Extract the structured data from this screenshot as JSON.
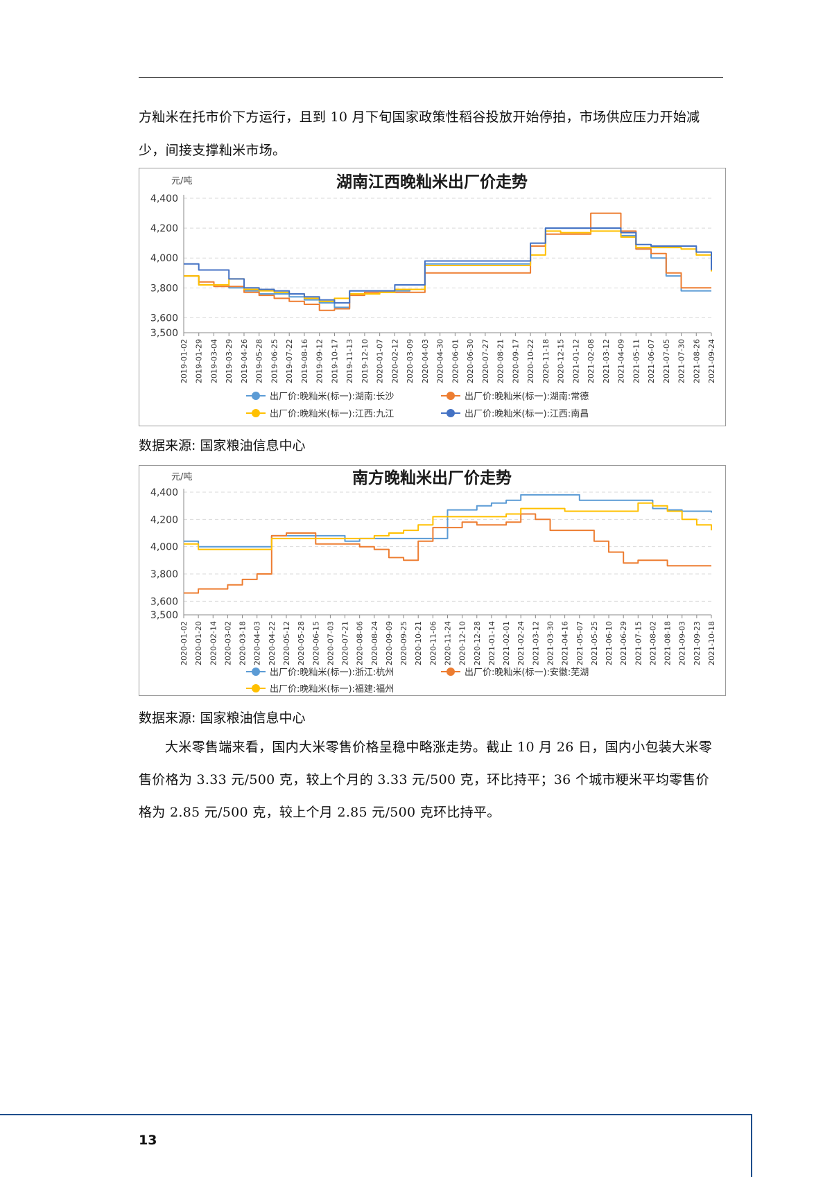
{
  "paragraph_1": "方籼米在托市价下方运行，且到 10 月下旬国家政策性稻谷投放开始停拍，市场供应压力开始减少，间接支撑籼米市场。",
  "caption_1": "数据来源: 国家粮油信息中心",
  "caption_2": "数据来源: 国家粮油信息中心",
  "paragraph_2": "大米零售端来看，国内大米零售价格呈稳中略涨走势。截止 10 月 26 日，国内小包装大米零售价格为 3.33 元/500 克，较上个月的 3.33 元/500 克，环比持平；36 个城市粳米平均零售价格为 2.85 元/500 克，较上个月 2.85 元/500 克环比持平。",
  "page_number": "13",
  "chart_data": [
    {
      "type": "line",
      "title": "湖南江西晚籼米出厂价走势",
      "unit_label": "元/吨",
      "ylabel": "元/吨",
      "ylim": [
        3500,
        4400
      ],
      "yticks": [
        3500,
        3600,
        3800,
        4000,
        4200,
        4400
      ],
      "ytick_labels": [
        "3,500",
        "3,600",
        "3,800",
        "4,000",
        "4,200",
        "4,400"
      ],
      "x_tick_labels": [
        "2019-01-02",
        "2019-01-29",
        "2019-03-04",
        "2019-03-29",
        "2019-04-26",
        "2019-05-28",
        "2019-06-25",
        "2019-07-22",
        "2019-08-16",
        "2019-09-12",
        "2019-10-17",
        "2019-11-13",
        "2019-12-10",
        "2020-01-07",
        "2020-02-12",
        "2020-03-09",
        "2020-04-03",
        "2020-04-30",
        "2020-06-01",
        "2020-06-30",
        "2020-07-27",
        "2020-08-21",
        "2020-09-17",
        "2020-10-22",
        "2020-11-18",
        "2020-12-15",
        "2021-01-12",
        "2021-02-08",
        "2021-03-12",
        "2021-04-09",
        "2021-05-11",
        "2021-06-07",
        "2021-07-05",
        "2021-07-30",
        "2021-08-26",
        "2021-09-24"
      ],
      "grid": true,
      "legend": "bottom",
      "series": [
        {
          "name": "出厂价:晚籼米(标一):湖南:长沙",
          "color": "#5b9bd5",
          "values": [
            3880,
            3820,
            3820,
            3800,
            3780,
            3760,
            3760,
            3740,
            3720,
            3700,
            3670,
            3780,
            3780,
            3780,
            3780,
            3790,
            3960,
            3960,
            3960,
            3960,
            3960,
            3960,
            3960,
            4080,
            4200,
            4200,
            4200,
            4200,
            4200,
            4150,
            4060,
            4000,
            3880,
            3780,
            3780,
            3780
          ]
        },
        {
          "name": "出厂价:晚籼米(标一):湖南:常德",
          "color": "#ed7d31",
          "values": [
            3880,
            3840,
            3810,
            3810,
            3770,
            3750,
            3730,
            3710,
            3690,
            3650,
            3660,
            3750,
            3770,
            3770,
            3770,
            3770,
            3900,
            3900,
            3900,
            3900,
            3900,
            3900,
            3900,
            4080,
            4160,
            4160,
            4160,
            4300,
            4300,
            4180,
            4060,
            4030,
            3900,
            3800,
            3800,
            3800
          ]
        },
        {
          "name": "出厂价:晚籼米(标一):江西:九江",
          "color": "#ffc000",
          "values": [
            3880,
            3820,
            3820,
            3860,
            3790,
            3780,
            3770,
            3760,
            3730,
            3710,
            3730,
            3760,
            3760,
            3770,
            3790,
            3790,
            3950,
            3950,
            3950,
            3950,
            3950,
            3950,
            3950,
            4020,
            4180,
            4170,
            4170,
            4180,
            4180,
            4140,
            4070,
            4070,
            4070,
            4060,
            4020,
            3910
          ]
        },
        {
          "name": "出厂价:晚籼米(标一):江西:南昌",
          "color": "#4472c4",
          "values": [
            3960,
            3920,
            3920,
            3860,
            3800,
            3790,
            3780,
            3760,
            3740,
            3720,
            3700,
            3780,
            3780,
            3780,
            3820,
            3820,
            3980,
            3980,
            3980,
            3980,
            3980,
            3980,
            3980,
            4100,
            4200,
            4200,
            4200,
            4200,
            4200,
            4170,
            4090,
            4080,
            4080,
            4080,
            4040,
            3920
          ]
        }
      ]
    },
    {
      "type": "line",
      "title": "南方晚籼米出厂价走势",
      "unit_label": "元/吨",
      "ylabel": "元/吨",
      "ylim": [
        3500,
        4400
      ],
      "yticks": [
        3500,
        3600,
        3800,
        4000,
        4200,
        4400
      ],
      "ytick_labels": [
        "3,500",
        "3,600",
        "3,800",
        "4,000",
        "4,200",
        "4,400"
      ],
      "x_tick_labels": [
        "2020-01-02",
        "2020-01-20",
        "2020-02-14",
        "2020-03-02",
        "2020-03-18",
        "2020-04-03",
        "2020-04-22",
        "2020-05-12",
        "2020-05-28",
        "2020-06-15",
        "2020-07-03",
        "2020-07-21",
        "2020-08-06",
        "2020-08-24",
        "2020-09-09",
        "2020-09-25",
        "2020-10-21",
        "2020-11-06",
        "2020-11-24",
        "2020-12-10",
        "2020-12-28",
        "2021-01-14",
        "2021-02-01",
        "2021-02-24",
        "2021-03-12",
        "2021-03-30",
        "2021-04-16",
        "2021-05-07",
        "2021-05-25",
        "2021-06-10",
        "2021-06-29",
        "2021-07-15",
        "2021-08-02",
        "2021-08-18",
        "2021-09-03",
        "2021-09-23",
        "2021-10-18"
      ],
      "grid": true,
      "legend": "bottom",
      "series": [
        {
          "name": "出厂价:晚籼米(标一):浙江:杭州",
          "color": "#5b9bd5",
          "values": [
            4040,
            4000,
            4000,
            4000,
            4000,
            4000,
            4080,
            4080,
            4080,
            4080,
            4080,
            4040,
            4060,
            4060,
            4060,
            4060,
            4060,
            4060,
            4270,
            4270,
            4300,
            4320,
            4340,
            4380,
            4380,
            4380,
            4380,
            4340,
            4340,
            4340,
            4340,
            4340,
            4280,
            4270,
            4260,
            4260,
            4250
          ]
        },
        {
          "name": "出厂价:晚籼米(标一):安徽:芜湖",
          "color": "#ed7d31",
          "values": [
            3660,
            3690,
            3690,
            3720,
            3760,
            3800,
            4080,
            4100,
            4100,
            4020,
            4020,
            4020,
            4000,
            3980,
            3920,
            3900,
            4040,
            4140,
            4140,
            4180,
            4160,
            4160,
            4180,
            4240,
            4200,
            4120,
            4120,
            4120,
            4040,
            3960,
            3880,
            3900,
            3900,
            3860,
            3860,
            3860,
            3860
          ]
        },
        {
          "name": "出厂价:晚籼米(标一):福建:福州",
          "color": "#ffc000",
          "values": [
            4020,
            3980,
            3980,
            3980,
            3980,
            3980,
            4060,
            4060,
            4060,
            4060,
            4060,
            4060,
            4060,
            4080,
            4100,
            4120,
            4160,
            4220,
            4220,
            4220,
            4220,
            4220,
            4240,
            4280,
            4280,
            4280,
            4260,
            4260,
            4260,
            4260,
            4260,
            4320,
            4300,
            4260,
            4200,
            4160,
            4120
          ]
        }
      ]
    }
  ]
}
